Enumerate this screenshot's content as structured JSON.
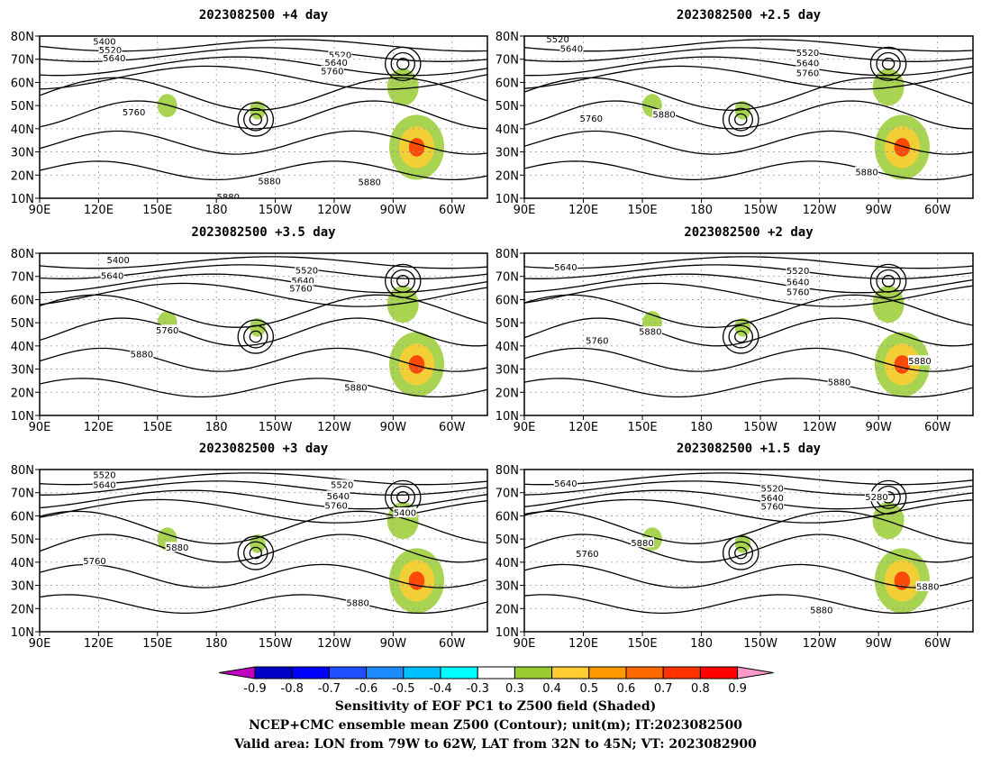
{
  "panels": [
    {
      "title": "2023082500  +4 day",
      "labels": [
        {
          "t": "5400",
          "lon": 123,
          "lat": 77.6
        },
        {
          "t": "5520",
          "lon": 126,
          "lat": 73.9
        },
        {
          "t": "5640",
          "lon": 128,
          "lat": 70.4
        },
        {
          "t": "5520",
          "lon": 243,
          "lat": 71.8
        },
        {
          "t": "5640",
          "lon": 241,
          "lat": 68.6
        },
        {
          "t": "5760",
          "lon": 239,
          "lat": 64.9
        },
        {
          "t": "5760",
          "lon": 138,
          "lat": 47.1
        },
        {
          "t": "5880",
          "lon": 207,
          "lat": 17.3
        },
        {
          "t": "5880",
          "lon": 186,
          "lat": 10.6
        },
        {
          "t": "5880",
          "lon": 258,
          "lat": 17.0
        }
      ]
    },
    {
      "title": "2023082500  +2.5 day",
      "labels": [
        {
          "t": "5520",
          "lon": 107,
          "lat": 78.6
        },
        {
          "t": "5640",
          "lon": 114,
          "lat": 74.6
        },
        {
          "t": "5520",
          "lon": 234,
          "lat": 72.8
        },
        {
          "t": "5640",
          "lon": 234,
          "lat": 68.4
        },
        {
          "t": "5760",
          "lon": 234,
          "lat": 64.1
        },
        {
          "t": "5760",
          "lon": 124,
          "lat": 44.4
        },
        {
          "t": "5880",
          "lon": 161,
          "lat": 46.1
        },
        {
          "t": "5880",
          "lon": 264,
          "lat": 21.3
        }
      ]
    },
    {
      "title": "2023082500  +3.5 day",
      "labels": [
        {
          "t": "5400",
          "lon": 130,
          "lat": 77.1
        },
        {
          "t": "5640",
          "lon": 127,
          "lat": 70.3
        },
        {
          "t": "5520",
          "lon": 226,
          "lat": 72.6
        },
        {
          "t": "5640",
          "lon": 224,
          "lat": 68.1
        },
        {
          "t": "5760",
          "lon": 223,
          "lat": 64.9
        },
        {
          "t": "5760",
          "lon": 155,
          "lat": 46.8
        },
        {
          "t": "5880",
          "lon": 142,
          "lat": 36.4
        },
        {
          "t": "5880",
          "lon": 251,
          "lat": 22.1
        }
      ]
    },
    {
      "title": "2023082500  +2 day",
      "labels": [
        {
          "t": "5640",
          "lon": 111,
          "lat": 73.9
        },
        {
          "t": "5520",
          "lon": 229,
          "lat": 72.4
        },
        {
          "t": "5640",
          "lon": 229,
          "lat": 67.5
        },
        {
          "t": "5760",
          "lon": 229,
          "lat": 63.3
        },
        {
          "t": "5760",
          "lon": 127,
          "lat": 42.2
        },
        {
          "t": "5880",
          "lon": 154,
          "lat": 46.1
        },
        {
          "t": "5880",
          "lon": 250,
          "lat": 24.4
        },
        {
          "t": "5880",
          "lon": 291,
          "lat": 33.6
        }
      ]
    },
    {
      "title": "2023082500  +3 day",
      "labels": [
        {
          "t": "5520",
          "lon": 123,
          "lat": 77.6
        },
        {
          "t": "5640",
          "lon": 123,
          "lat": 73.3
        },
        {
          "t": "5520",
          "lon": 244,
          "lat": 73.3
        },
        {
          "t": "5640",
          "lon": 242,
          "lat": 68.6
        },
        {
          "t": "5760",
          "lon": 241,
          "lat": 64.5
        },
        {
          "t": "5400",
          "lon": 276,
          "lat": 61.3
        },
        {
          "t": "5880",
          "lon": 160,
          "lat": 46.4
        },
        {
          "t": "5760",
          "lon": 118,
          "lat": 40.6
        },
        {
          "t": "5880",
          "lon": 252,
          "lat": 22.4
        }
      ]
    },
    {
      "title": "2023082500  +1.5 day",
      "labels": [
        {
          "t": "5640",
          "lon": 111,
          "lat": 73.9
        },
        {
          "t": "5520",
          "lon": 216,
          "lat": 71.8
        },
        {
          "t": "5640",
          "lon": 216,
          "lat": 67.8
        },
        {
          "t": "5760",
          "lon": 216,
          "lat": 64.0
        },
        {
          "t": "5280",
          "lon": 269,
          "lat": 68.2
        },
        {
          "t": "5760",
          "lon": 122,
          "lat": 43.7
        },
        {
          "t": "5880",
          "lon": 150,
          "lat": 48.4
        },
        {
          "t": "5880",
          "lon": 295,
          "lat": 29.5
        },
        {
          "t": "5880",
          "lon": 241,
          "lat": 19.4
        }
      ]
    }
  ],
  "axes": {
    "lat_labels": [
      "10N",
      "20N",
      "30N",
      "40N",
      "50N",
      "60N",
      "70N",
      "80N"
    ],
    "lat_values": [
      10,
      20,
      30,
      40,
      50,
      60,
      70,
      80
    ],
    "lon_labels": [
      "90E",
      "120E",
      "150E",
      "180",
      "150W",
      "120W",
      "90W",
      "60W"
    ],
    "lon_values": [
      90,
      120,
      150,
      180,
      210,
      240,
      270,
      300
    ],
    "lon_range": [
      90,
      318
    ],
    "lat_range": [
      10,
      80
    ]
  },
  "colorbar": {
    "labels": [
      "-0.9",
      "-0.8",
      "-0.7",
      "-0.6",
      "-0.5",
      "-0.4",
      "-0.3",
      "0.3",
      "0.4",
      "0.5",
      "0.6",
      "0.7",
      "0.8",
      "0.9"
    ],
    "colors": [
      "#0000c8",
      "#0000ff",
      "#1e50ff",
      "#1e8cff",
      "#00c0ff",
      "#00ffff",
      "#ffffff",
      "#99cc33",
      "#ffcc33",
      "#ff9900",
      "#ff6a00",
      "#ff3300",
      "#ff0000"
    ],
    "low_color": "#c000c0",
    "high_color": "#ff99cc"
  },
  "footer": {
    "line1": "Sensitivity of EOF PC1 to Z500 field (Shaded)",
    "line2": "NCEP+CMC ensemble mean Z500 (Contour); unit(m); IT:2023082500",
    "line3": "Valid area: LON from 79W to 62W, LAT from 32N to 45N; VT: 2023082900"
  }
}
